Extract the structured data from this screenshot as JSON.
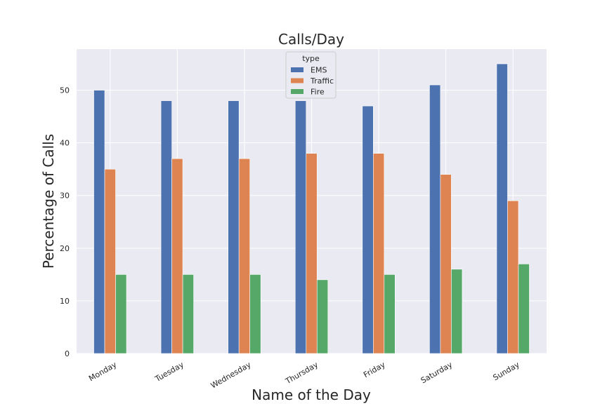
{
  "chart_data": {
    "type": "bar",
    "title": "Calls/Day",
    "xlabel": "Name of the Day",
    "ylabel": "Percentage of Calls",
    "categories": [
      "Monday",
      "Tuesday",
      "Wednesday",
      "Thursday",
      "Friday",
      "Saturday",
      "Sunday"
    ],
    "series": [
      {
        "name": "EMS",
        "color": "#4c72b0",
        "values": [
          50,
          48,
          48,
          48,
          47,
          51,
          55
        ]
      },
      {
        "name": "Traffic",
        "color": "#dd8452",
        "values": [
          35,
          37,
          37,
          38,
          38,
          34,
          29
        ]
      },
      {
        "name": "Fire",
        "color": "#55a868",
        "values": [
          15,
          15,
          15,
          14,
          15,
          16,
          17
        ]
      }
    ],
    "ylim": [
      0,
      57.8
    ],
    "yticks": [
      0,
      10,
      20,
      30,
      40,
      50
    ],
    "grid": true,
    "legend": {
      "title": "type",
      "placement": "top-center"
    },
    "background": "#eaeaf2"
  }
}
